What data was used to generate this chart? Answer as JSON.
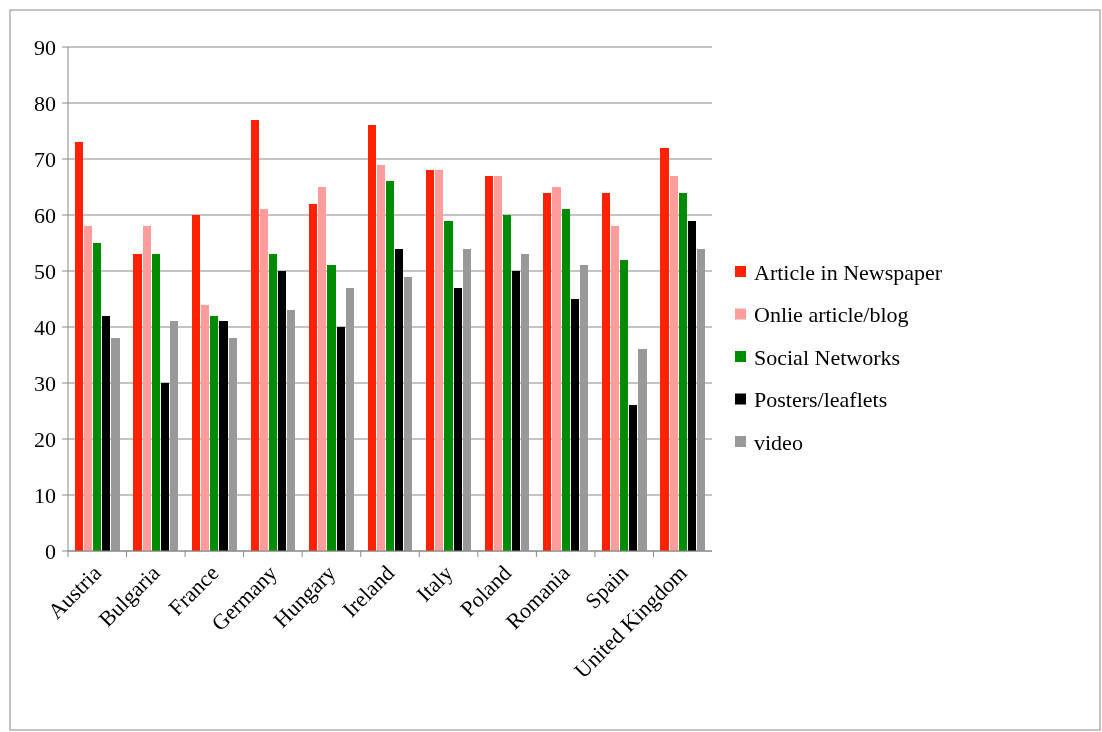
{
  "chart_data": {
    "type": "bar",
    "categories": [
      "Austria",
      "Bulgaria",
      "France",
      "Germany",
      "Hungary",
      "Ireland",
      "Italy",
      "Poland",
      "Romania",
      "Spain",
      "United Kingdom"
    ],
    "series": [
      {
        "name": "Article in Newspaper",
        "color": "#ff2200",
        "values": [
          73,
          53,
          60,
          77,
          62,
          76,
          68,
          67,
          64,
          64,
          72
        ]
      },
      {
        "name": "Onlie article/blog",
        "color": "#ff9c9c",
        "values": [
          58,
          58,
          44,
          61,
          65,
          69,
          68,
          67,
          65,
          58,
          67
        ]
      },
      {
        "name": "Social Networks",
        "color": "#008c00",
        "values": [
          55,
          53,
          42,
          53,
          51,
          66,
          59,
          60,
          61,
          52,
          64
        ]
      },
      {
        "name": "Posters/leaflets",
        "color": "#000000",
        "values": [
          42,
          30,
          41,
          50,
          40,
          54,
          47,
          50,
          45,
          26,
          59
        ]
      },
      {
        "name": "video",
        "color": "#999999",
        "values": [
          38,
          41,
          38,
          43,
          47,
          49,
          54,
          53,
          51,
          36,
          54
        ]
      }
    ],
    "ylim": [
      0,
      90
    ],
    "yticks": [
      0,
      10,
      20,
      30,
      40,
      50,
      60,
      70,
      80,
      90
    ],
    "grid": "y",
    "legend": "right"
  }
}
